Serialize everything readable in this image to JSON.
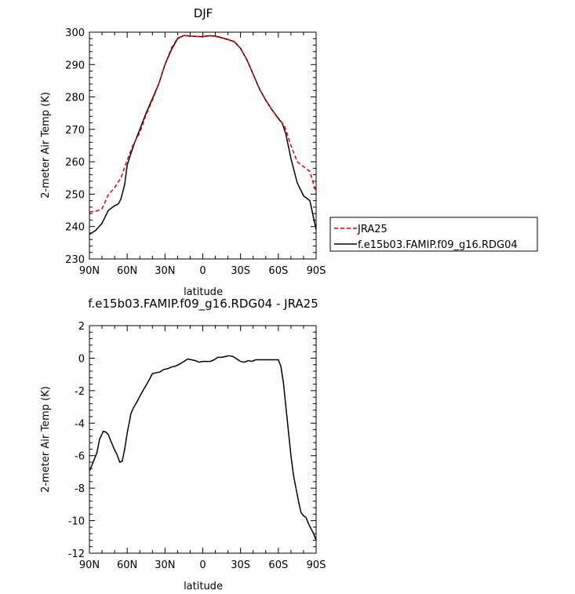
{
  "chart_data": [
    {
      "type": "line",
      "title": "DJF",
      "xlabel": "latitude",
      "ylabel": "2-meter Air Temp (K)",
      "xlim": [
        90,
        -90
      ],
      "ylim": [
        230,
        300
      ],
      "x_ticks": [
        90,
        60,
        30,
        0,
        -30,
        -60,
        -90
      ],
      "x_tick_labels": [
        "90N",
        "60N",
        "30N",
        "0",
        "30S",
        "60S",
        "90S"
      ],
      "y_ticks": [
        230,
        240,
        250,
        260,
        270,
        280,
        290,
        300
      ],
      "y_tick_labels": [
        "230",
        "240",
        "250",
        "260",
        "270",
        "280",
        "290",
        "300"
      ],
      "legend": {
        "placement": "right",
        "entries": [
          "JRA25",
          "f.e15b03.FAMIP.f09_g16.RDG04"
        ]
      },
      "series": [
        {
          "name": "JRA25",
          "color": "#e00000",
          "dash": true,
          "x": [
            90,
            85,
            80,
            75,
            70,
            65,
            60,
            55,
            50,
            45,
            40,
            35,
            30,
            25,
            20,
            15,
            10,
            5,
            0,
            -5,
            -10,
            -15,
            -20,
            -25,
            -30,
            -35,
            -40,
            -45,
            -50,
            -55,
            -60,
            -65,
            -70,
            -75,
            -80,
            -85,
            -90
          ],
          "values": [
            244.5,
            244.7,
            245.5,
            249.8,
            252.0,
            255.0,
            260.5,
            265.5,
            269.0,
            274.5,
            279.0,
            284.0,
            290.0,
            295.0,
            298.2,
            299.0,
            298.8,
            298.7,
            298.7,
            298.9,
            298.7,
            298.2,
            297.8,
            297.0,
            295.0,
            291.5,
            287.0,
            282.5,
            279.0,
            276.0,
            273.5,
            271.0,
            265.0,
            260.0,
            258.5,
            257.0,
            250.5
          ]
        },
        {
          "name": "f.e15b03.FAMIP.f09_g16.RDG04",
          "color": "#000000",
          "dash": false,
          "x": [
            90,
            85,
            80,
            75,
            70,
            67,
            65,
            62,
            60,
            55,
            50,
            45,
            40,
            35,
            30,
            25,
            20,
            15,
            10,
            5,
            0,
            -5,
            -10,
            -15,
            -20,
            -25,
            -30,
            -35,
            -40,
            -45,
            -50,
            -55,
            -60,
            -63,
            -66,
            -70,
            -75,
            -80,
            -85,
            -90
          ],
          "values": [
            237.6,
            238.8,
            241.0,
            245.0,
            246.4,
            247.0,
            248.5,
            253.0,
            259.0,
            265.0,
            270.0,
            275.0,
            279.5,
            284.0,
            290.0,
            294.5,
            298.0,
            299.0,
            298.8,
            298.7,
            298.6,
            298.9,
            298.8,
            298.3,
            297.7,
            297.1,
            295.0,
            291.5,
            287.0,
            282.5,
            279.0,
            276.0,
            273.3,
            272.0,
            268.5,
            261.0,
            253.5,
            249.5,
            248.0,
            239.0
          ]
        }
      ]
    },
    {
      "type": "line",
      "title": "f.e15b03.FAMIP.f09_g16.RDG04 - JRA25",
      "xlabel": "latitude",
      "ylabel": "2-meter Air Temp (K)",
      "xlim": [
        90,
        -90
      ],
      "ylim": [
        -12,
        2
      ],
      "x_ticks": [
        90,
        60,
        30,
        0,
        -30,
        -60,
        -90
      ],
      "x_tick_labels": [
        "90N",
        "60N",
        "30N",
        "0",
        "30S",
        "60S",
        "90S"
      ],
      "y_ticks": [
        -12,
        -10,
        -8,
        -6,
        -4,
        -2,
        0,
        2
      ],
      "y_tick_labels": [
        "-12",
        "-10",
        "-8",
        "-6",
        "-4",
        "-2",
        "0",
        "2"
      ],
      "series": [
        {
          "color": "#000000",
          "dash": false,
          "x": [
            90,
            87,
            84,
            82,
            79,
            77,
            75,
            73,
            70,
            68,
            66,
            64,
            62,
            60,
            57,
            55,
            52,
            49,
            46,
            43,
            40,
            37,
            34,
            31,
            28,
            25,
            22,
            18,
            15,
            12,
            9,
            6,
            3,
            0,
            -3,
            -6,
            -9,
            -12,
            -15,
            -18,
            -21,
            -24,
            -27,
            -30,
            -33,
            -36,
            -39,
            -42,
            -45,
            -48,
            -51,
            -54,
            -57,
            -60,
            -62,
            -64,
            -66,
            -68,
            -70,
            -72,
            -74,
            -76,
            -78,
            -80,
            -82,
            -84,
            -86,
            -88,
            -90
          ],
          "values": [
            -6.95,
            -6.4,
            -5.8,
            -5.0,
            -4.5,
            -4.55,
            -4.7,
            -5.1,
            -5.65,
            -5.95,
            -6.4,
            -6.35,
            -5.6,
            -4.6,
            -3.4,
            -3.05,
            -2.65,
            -2.2,
            -1.8,
            -1.4,
            -0.95,
            -0.9,
            -0.85,
            -0.7,
            -0.65,
            -0.55,
            -0.5,
            -0.35,
            -0.2,
            -0.05,
            -0.1,
            -0.15,
            -0.25,
            -0.2,
            -0.2,
            -0.2,
            -0.1,
            0.05,
            0.05,
            0.1,
            0.15,
            0.1,
            -0.05,
            -0.2,
            -0.25,
            -0.15,
            -0.2,
            -0.1,
            -0.1,
            -0.1,
            -0.1,
            -0.1,
            -0.1,
            -0.1,
            -0.5,
            -1.5,
            -3.0,
            -4.5,
            -6.0,
            -7.2,
            -8.0,
            -8.8,
            -9.5,
            -9.7,
            -9.8,
            -10.2,
            -10.5,
            -10.8,
            -11.2
          ]
        }
      ]
    }
  ]
}
